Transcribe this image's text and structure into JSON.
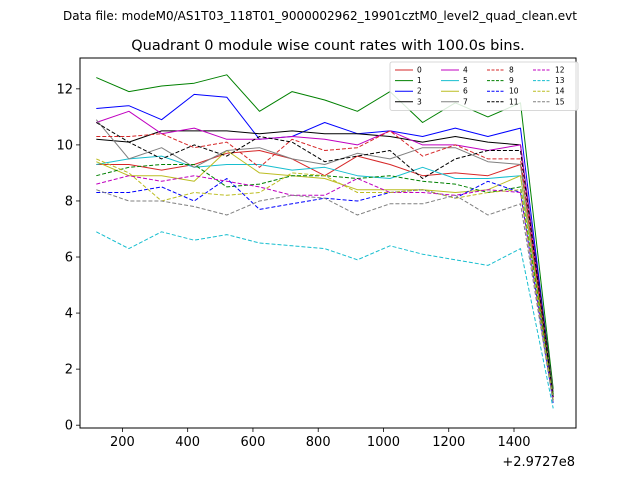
{
  "chart_data": {
    "type": "line",
    "suptitle": "Data file: modeM0/AS1T03_118T01_9000002962_19901cztM0_level2_quad_clean.evt",
    "title": "Quadrant 0 module wise count rates with 100.0s bins.",
    "xlabel": "",
    "ylabel": "",
    "x_offset_label": "+2.9727e8",
    "xlim": [
      70,
      1590
    ],
    "ylim": [
      -0.1,
      13.1
    ],
    "xticks": [
      200,
      400,
      600,
      800,
      1000,
      1200,
      1400
    ],
    "yticks": [
      0,
      2,
      4,
      6,
      8,
      10,
      12
    ],
    "x": [
      120,
      220,
      320,
      420,
      520,
      620,
      720,
      820,
      920,
      1020,
      1120,
      1220,
      1320,
      1420,
      1520
    ],
    "legend_position": "top-right",
    "legend_columns": 4,
    "series": [
      {
        "name": "0",
        "color": "#d62728",
        "dash": "solid",
        "values": [
          9.3,
          9.3,
          9.1,
          9.3,
          9.7,
          9.8,
          9.5,
          8.9,
          9.6,
          9.3,
          8.9,
          9.0,
          8.9,
          9.3,
          1.0
        ]
      },
      {
        "name": "1",
        "color": "#008000",
        "dash": "solid",
        "values": [
          12.4,
          11.9,
          12.1,
          12.2,
          12.5,
          11.2,
          11.9,
          11.6,
          11.2,
          11.9,
          10.8,
          11.5,
          11.0,
          11.5,
          1.3
        ]
      },
      {
        "name": "2",
        "color": "#0000ff",
        "dash": "solid",
        "values": [
          11.3,
          11.4,
          10.9,
          11.8,
          11.7,
          10.2,
          10.3,
          10.8,
          10.4,
          10.5,
          10.3,
          10.6,
          10.3,
          10.6,
          1.1
        ]
      },
      {
        "name": "3",
        "color": "#000000",
        "dash": "solid",
        "values": [
          10.2,
          10.1,
          10.5,
          10.5,
          10.5,
          10.4,
          10.5,
          10.4,
          10.4,
          10.3,
          10.1,
          10.3,
          10.1,
          10.0,
          1.2
        ]
      },
      {
        "name": "4",
        "color": "#c000c0",
        "dash": "solid",
        "values": [
          10.8,
          11.2,
          10.4,
          10.6,
          10.2,
          10.2,
          10.3,
          10.2,
          10.0,
          10.5,
          10.0,
          10.0,
          9.8,
          10.0,
          1.0
        ]
      },
      {
        "name": "5",
        "color": "#17becf",
        "dash": "solid",
        "values": [
          9.3,
          9.5,
          9.6,
          9.2,
          9.3,
          9.3,
          9.1,
          9.2,
          8.9,
          8.8,
          9.2,
          8.8,
          8.8,
          8.9,
          0.9
        ]
      },
      {
        "name": "6",
        "color": "#bcbd22",
        "dash": "solid",
        "values": [
          9.4,
          8.9,
          8.9,
          8.7,
          9.8,
          9.0,
          8.9,
          8.8,
          8.4,
          8.4,
          8.4,
          8.3,
          8.4,
          8.9,
          1.1
        ]
      },
      {
        "name": "7",
        "color": "#808080",
        "dash": "solid",
        "values": [
          10.9,
          9.5,
          9.9,
          9.2,
          9.8,
          9.9,
          9.5,
          9.3,
          9.7,
          9.5,
          9.9,
          9.9,
          9.4,
          9.3,
          1.2
        ]
      },
      {
        "name": "8",
        "color": "#d62728",
        "dash": "dashed",
        "values": [
          10.3,
          10.3,
          10.4,
          9.9,
          10.1,
          9.2,
          10.2,
          9.8,
          9.9,
          10.5,
          9.6,
          10.0,
          9.5,
          9.5,
          1.0
        ]
      },
      {
        "name": "9",
        "color": "#008000",
        "dash": "dashed",
        "values": [
          8.9,
          9.2,
          9.3,
          9.3,
          8.5,
          8.6,
          8.9,
          8.9,
          8.8,
          8.9,
          8.7,
          8.6,
          8.3,
          8.5,
          1.1
        ]
      },
      {
        "name": "10",
        "color": "#0000ff",
        "dash": "dashed",
        "values": [
          8.3,
          8.3,
          8.5,
          8.0,
          8.8,
          7.7,
          7.9,
          8.1,
          8.0,
          8.3,
          8.4,
          8.1,
          8.7,
          8.3,
          0.8
        ]
      },
      {
        "name": "11",
        "color": "#000000",
        "dash": "dashed",
        "values": [
          10.8,
          10.1,
          9.5,
          10.0,
          9.6,
          10.3,
          10.1,
          9.4,
          9.6,
          9.8,
          8.8,
          9.5,
          9.8,
          9.8,
          1.0
        ]
      },
      {
        "name": "12",
        "color": "#c000c0",
        "dash": "dashed",
        "values": [
          8.6,
          8.9,
          8.7,
          8.9,
          8.7,
          8.5,
          8.2,
          8.2,
          8.8,
          8.3,
          8.3,
          8.2,
          8.4,
          8.3,
          0.9
        ]
      },
      {
        "name": "13",
        "color": "#17becf",
        "dash": "dashed",
        "values": [
          6.9,
          6.3,
          6.9,
          6.6,
          6.8,
          6.5,
          6.4,
          6.3,
          5.9,
          6.4,
          6.1,
          5.9,
          5.7,
          6.3,
          0.6
        ]
      },
      {
        "name": "14",
        "color": "#bcbd22",
        "dash": "dashed",
        "values": [
          9.5,
          9.0,
          8.0,
          8.3,
          8.2,
          8.3,
          9.0,
          8.9,
          8.3,
          8.3,
          8.4,
          8.1,
          8.3,
          8.4,
          0.9
        ]
      },
      {
        "name": "15",
        "color": "#808080",
        "dash": "dashed",
        "values": [
          8.4,
          8.0,
          8.0,
          7.8,
          7.5,
          8.0,
          8.2,
          8.1,
          7.5,
          7.9,
          7.9,
          8.2,
          7.5,
          7.9,
          0.8
        ]
      }
    ]
  }
}
